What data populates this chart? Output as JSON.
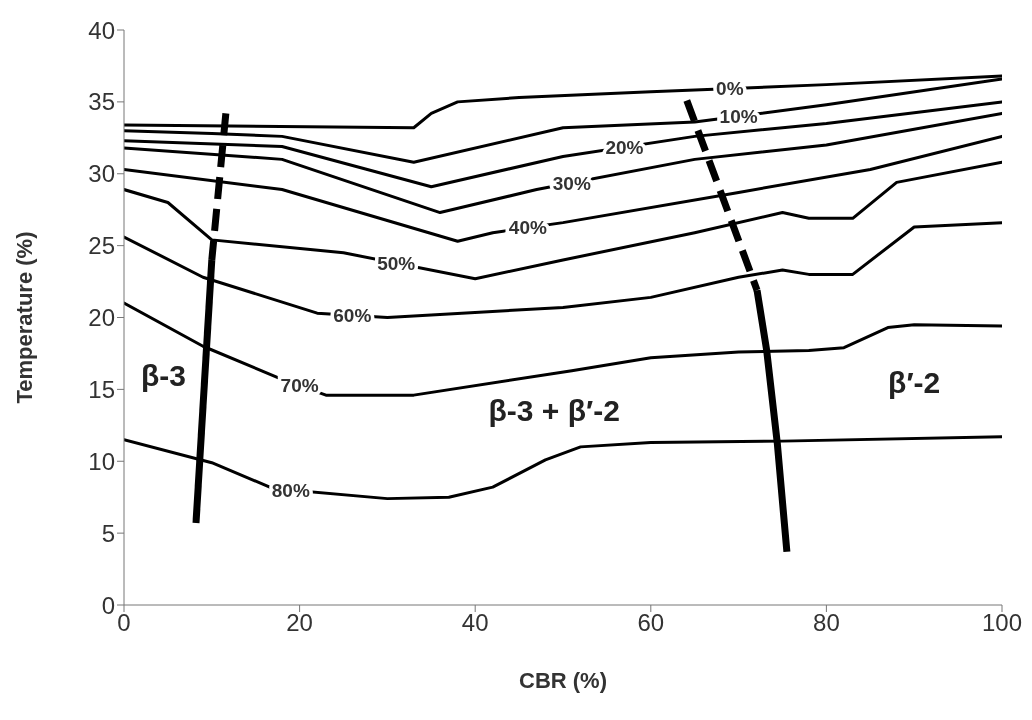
{
  "chart_data": {
    "type": "line",
    "xlabel": "CBR (%)",
    "ylabel": "Temperature (%)",
    "xlim": [
      0,
      100
    ],
    "xticks": [
      0,
      20,
      40,
      60,
      80,
      100
    ],
    "ylim": [
      0,
      40
    ],
    "yticks": [
      0,
      5,
      10,
      15,
      20,
      25,
      30,
      35,
      40
    ],
    "grid": false,
    "legend": false,
    "marker": "none",
    "line_style": "solid",
    "annotations": [
      "β-3",
      "β-3 + β′-2",
      "β′-2"
    ],
    "series": [
      {
        "name": "0%",
        "color": "#000000",
        "x": [
          0,
          33,
          35,
          38,
          45,
          60,
          80,
          100
        ],
        "values": [
          33.4,
          33.2,
          34.2,
          35.0,
          35.3,
          35.7,
          36.2,
          36.8
        ]
      },
      {
        "name": "10%",
        "color": "#000000",
        "x": [
          0,
          10,
          18,
          33,
          50,
          65,
          80,
          100
        ],
        "values": [
          33.0,
          32.8,
          32.6,
          30.8,
          33.2,
          33.6,
          34.8,
          36.6
        ]
      },
      {
        "name": "20%",
        "color": "#000000",
        "x": [
          0,
          18,
          35,
          50,
          65,
          80,
          100
        ],
        "values": [
          32.3,
          31.9,
          29.1,
          31.2,
          32.6,
          33.5,
          35.0
        ]
      },
      {
        "name": "30%",
        "color": "#000000",
        "x": [
          0,
          18,
          36,
          47,
          65,
          80,
          100
        ],
        "values": [
          31.8,
          31.0,
          27.3,
          28.9,
          31.0,
          32.0,
          34.2
        ]
      },
      {
        "name": "40%",
        "color": "#000000",
        "x": [
          0,
          18,
          38,
          42,
          50,
          70,
          85,
          100
        ],
        "values": [
          30.3,
          28.9,
          25.3,
          25.9,
          26.6,
          28.7,
          30.3,
          32.6
        ]
      },
      {
        "name": "50%",
        "color": "#000000",
        "x": [
          0,
          5,
          10,
          25,
          40,
          50,
          65,
          75,
          78,
          83,
          88,
          100
        ],
        "values": [
          28.9,
          28.0,
          25.4,
          24.5,
          22.7,
          24.0,
          25.9,
          27.3,
          26.9,
          26.9,
          29.4,
          30.8
        ]
      },
      {
        "name": "60%",
        "color": "#000000",
        "x": [
          0,
          9,
          22,
          30,
          50,
          60,
          70,
          75,
          78,
          83,
          90,
          100
        ],
        "values": [
          25.6,
          22.8,
          20.3,
          20.0,
          20.7,
          21.4,
          22.8,
          23.3,
          23.0,
          23.0,
          26.3,
          26.6
        ]
      },
      {
        "name": "70%",
        "color": "#000000",
        "x": [
          0,
          9,
          18,
          23,
          33,
          51,
          60,
          70,
          78,
          82,
          87,
          90,
          100
        ],
        "values": [
          21.0,
          18.0,
          15.7,
          14.6,
          14.6,
          16.3,
          17.2,
          17.6,
          17.7,
          17.9,
          19.3,
          19.5,
          19.4
        ]
      },
      {
        "name": "80%",
        "color": "#000000",
        "x": [
          0,
          10,
          17,
          30,
          37,
          42,
          48,
          52,
          60,
          75,
          100
        ],
        "values": [
          11.5,
          9.9,
          8.1,
          7.4,
          7.5,
          8.2,
          10.1,
          11.0,
          11.3,
          11.4,
          11.7
        ]
      },
      {
        "color": "#000000",
        "line_style": "dashed",
        "x": [
          11.6,
          10.0
        ],
        "values": [
          34.2,
          24.0
        ]
      },
      {
        "color": "#000000",
        "x": [
          10.0,
          8.2
        ],
        "values": [
          24.0,
          5.7
        ]
      },
      {
        "color": "#000000",
        "line_style": "dashed",
        "x": [
          64.1,
          72.1
        ],
        "values": [
          35.1,
          21.9
        ]
      },
      {
        "color": "#000000",
        "x": [
          72.1,
          73.2,
          74.4,
          75.5
        ],
        "values": [
          21.9,
          17.7,
          11.3,
          3.7
        ]
      }
    ]
  }
}
